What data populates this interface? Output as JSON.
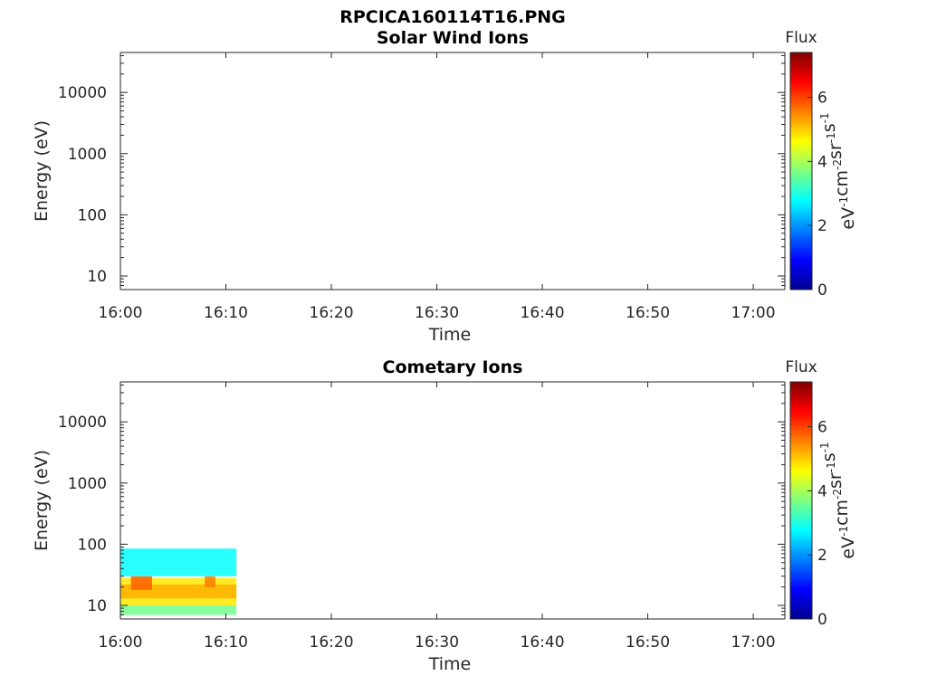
{
  "figure_title": "RPCICA160114T16.PNG",
  "colors": {
    "axis": "#262626",
    "background": "#ffffff"
  },
  "chart_data": [
    {
      "type": "heatmap",
      "title": "Solar Wind Ions",
      "xlabel": "Time",
      "ylabel": "Energy (eV)",
      "x_ticks": [
        "16:00",
        "16:10",
        "16:20",
        "16:30",
        "16:40",
        "16:50",
        "17:00"
      ],
      "x_range": [
        "16:00",
        "17:03"
      ],
      "y_scale": "log",
      "y_ticks": [
        "10",
        "100",
        "1000",
        "10000"
      ],
      "y_range": [
        6,
        45000
      ],
      "colorbar": {
        "label": "Flux",
        "units": "eV-1cm-2sr-1s-1",
        "ticks": [
          "0",
          "2",
          "4",
          "6"
        ],
        "range": [
          0,
          7.4
        ],
        "colormap": "jet"
      },
      "data": []
    },
    {
      "type": "heatmap",
      "title": "Cometary Ions",
      "xlabel": "Time",
      "ylabel": "Energy (eV)",
      "x_ticks": [
        "16:00",
        "16:10",
        "16:20",
        "16:30",
        "16:40",
        "16:50",
        "17:00"
      ],
      "x_range": [
        "16:00",
        "17:03"
      ],
      "y_scale": "log",
      "y_ticks": [
        "10",
        "100",
        "1000",
        "10000"
      ],
      "y_range": [
        6,
        45000
      ],
      "colorbar": {
        "label": "Flux",
        "units": "eV-1cm-2sr-1s-1",
        "ticks": [
          "0",
          "2",
          "4",
          "6"
        ],
        "range": [
          0,
          7.4
        ],
        "colormap": "jet"
      },
      "data": [
        {
          "time_start": "16:00",
          "time_end": "16:11",
          "energy_min": 10,
          "energy_max": 28,
          "flux": 4.8
        },
        {
          "time_start": "16:00",
          "time_end": "16:11",
          "energy_min": 13,
          "energy_max": 22,
          "flux": 5.2
        },
        {
          "time_start": "16:01",
          "time_end": "16:03",
          "energy_min": 18,
          "energy_max": 30,
          "flux": 5.8
        },
        {
          "time_start": "16:08",
          "time_end": "16:09",
          "energy_min": 20,
          "energy_max": 30,
          "flux": 5.6
        },
        {
          "time_start": "16:00",
          "time_end": "16:11",
          "energy_min": 30,
          "energy_max": 85,
          "flux": 2.8
        },
        {
          "time_start": "16:00",
          "time_end": "16:11",
          "energy_min": 7,
          "energy_max": 10,
          "flux": 3.6
        }
      ]
    }
  ]
}
